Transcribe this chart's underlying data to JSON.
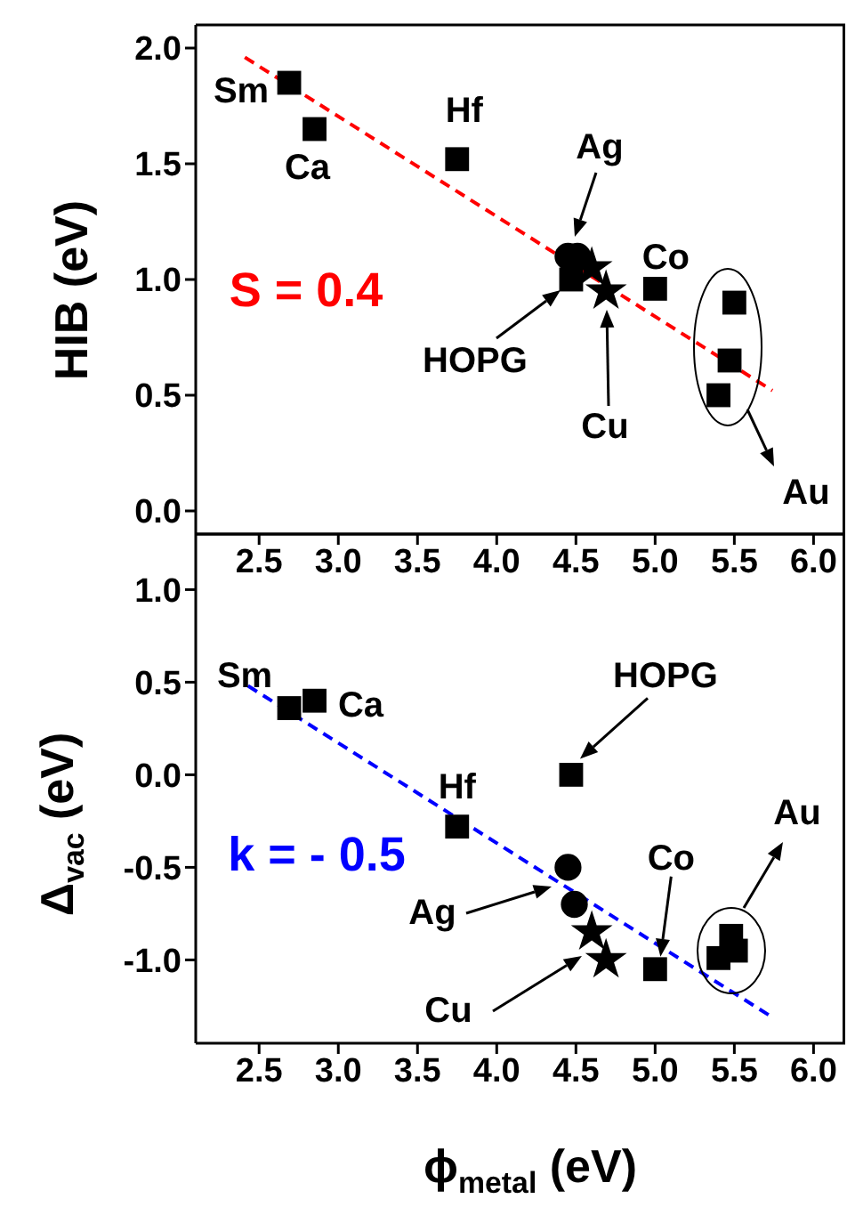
{
  "chart_data": [
    {
      "type": "scatter",
      "ylabel": "HIB (eV)",
      "xlim": [
        2.1,
        6.2
      ],
      "xticks": [
        2.5,
        {
          "value": 3,
          "label": "3.0"
        },
        3.5,
        {
          "value": 4,
          "label": "4.0"
        },
        4.5,
        {
          "value": 5,
          "label": "5.0"
        },
        5.5,
        {
          "value": 6,
          "label": "6.0"
        }
      ],
      "ylim": [
        -0.1,
        2.1
      ],
      "yticks": [
        {
          "value": 0,
          "label": "0.0"
        },
        0.5,
        {
          "value": 1,
          "label": "1.0"
        },
        1.5,
        {
          "value": 2,
          "label": "2.0"
        }
      ],
      "series": [
        {
          "type": "scatter",
          "marker": "square",
          "color": "#000000",
          "x": [
            2.69,
            2.85,
            3.75,
            4.47,
            5.0,
            5.5,
            5.47,
            5.4
          ],
          "values": [
            1.85,
            1.65,
            1.52,
            1.0,
            0.96,
            0.9,
            0.65,
            0.5
          ]
        },
        {
          "type": "scatter",
          "marker": "circle",
          "color": "#000000",
          "x": [
            4.45,
            4.51
          ],
          "values": [
            1.1,
            1.1
          ]
        },
        {
          "type": "scatter",
          "marker": "star",
          "color": "#000000",
          "x": [
            4.6,
            4.69
          ],
          "values": [
            1.05,
            0.95
          ]
        },
        {
          "type": "line",
          "marker": "none",
          "line_style": "dashed",
          "color": "#ff0000",
          "x": [
            2.41,
            5.74
          ],
          "values": [
            1.96,
            0.52
          ]
        }
      ],
      "annotations": [
        {
          "text": "Sm",
          "x": 2.69,
          "y": 1.85
        },
        {
          "text": "Ca",
          "x": 2.85,
          "y": 1.65
        },
        {
          "text": "Hf",
          "x": 3.75,
          "y": 1.52
        },
        {
          "text": "Ag",
          "x": 4.47,
          "y": 1.1
        },
        {
          "text": "HOPG",
          "x": 4.47,
          "y": 1.0
        },
        "Cu",
        {
          "text": "Co",
          "x": 5.0,
          "y": 0.96
        },
        "Au",
        "S = 0.4"
      ]
    },
    {
      "type": "scatter",
      "xlabel": "ϕ$_{metal}$ (eV)",
      "ylabel": "Δ$_{vac}$ (eV)",
      "xlim": [
        2.1,
        6.2
      ],
      "xticks": [
        2.5,
        {
          "value": 3,
          "label": "3.0"
        },
        3.5,
        {
          "value": 4,
          "label": "4.0"
        },
        4.5,
        {
          "value": 5,
          "label": "5.0"
        },
        5.5,
        {
          "value": 6,
          "label": "6.0"
        }
      ],
      "ylim": [
        -1.45,
        1.3
      ],
      "yticks": [
        {
          "value": -1,
          "label": "-1.0"
        },
        -0.5,
        {
          "value": 0,
          "label": "0.0"
        },
        0.5,
        {
          "value": 1,
          "label": "1.0"
        }
      ],
      "series": [
        {
          "type": "scatter",
          "marker": "square",
          "color": "#000000",
          "x": [
            2.69,
            2.85,
            3.75,
            4.47,
            5.0,
            5.4,
            5.48,
            5.51
          ],
          "values": [
            0.36,
            0.4,
            -0.28,
            0.0,
            -1.05,
            -0.99,
            -0.87,
            -0.95
          ]
        },
        {
          "type": "scatter",
          "marker": "circle",
          "color": "#000000",
          "x": [
            4.45,
            4.49
          ],
          "values": [
            -0.5,
            -0.7
          ]
        },
        {
          "type": "scatter",
          "marker": "star",
          "color": "#000000",
          "x": [
            4.6,
            4.69
          ],
          "values": [
            -0.85,
            -1.0
          ]
        },
        {
          "type": "line",
          "marker": "none",
          "line_style": "dashed",
          "color": "#0000ff",
          "x": [
            2.43,
            5.74
          ],
          "values": [
            0.48,
            -1.31
          ]
        }
      ],
      "annotations": [
        {
          "text": "Sm",
          "x": 2.69,
          "y": 0.36
        },
        {
          "text": "Ca",
          "x": 2.85,
          "y": 0.4
        },
        {
          "text": "Hf",
          "x": 3.75,
          "y": -0.28
        },
        {
          "text": "HOPG",
          "x": 4.47,
          "y": 0.0
        },
        "Ag",
        "Cu",
        {
          "text": "Co",
          "x": 5.0,
          "y": -1.05
        },
        "Au",
        "k = - 0.5"
      ]
    }
  ]
}
